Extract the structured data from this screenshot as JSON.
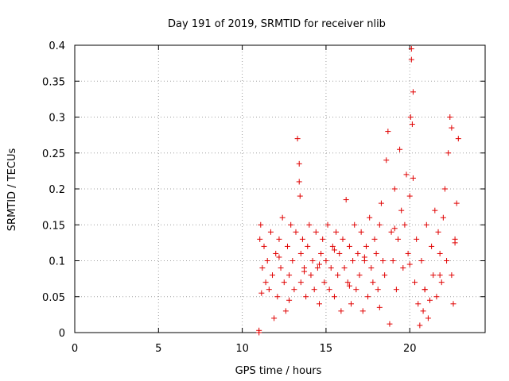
{
  "chart_data": {
    "type": "scatter",
    "title": "Day 191 of 2019, SRMTID for receiver nlib",
    "xlabel": "GPS time / hours",
    "ylabel": "SRMTID / TECUs",
    "xlim": [
      0,
      24.5
    ],
    "ylim": [
      0,
      0.4
    ],
    "grid": true,
    "legend": "none",
    "marker": "+",
    "x_ticks": [
      0,
      5,
      10,
      15,
      20
    ],
    "x_tick_labels": [
      "0",
      "5",
      "10",
      "15",
      "20"
    ],
    "y_ticks": [
      0,
      0.05,
      0.1,
      0.15,
      0.2,
      0.25,
      0.3,
      0.35,
      0.4
    ],
    "y_tick_labels": [
      "0",
      "0.05",
      "0.1",
      "0.15",
      "0.2",
      "0.25",
      "0.3",
      "0.35",
      "0.4"
    ],
    "series": [
      {
        "name": "SRMTID",
        "color": "#e00000",
        "x": [
          11.0,
          11.0,
          11.05,
          11.1,
          11.15,
          11.2,
          11.3,
          11.4,
          11.5,
          11.6,
          11.7,
          11.8,
          11.9,
          12.0,
          12.1,
          12.2,
          12.3,
          12.4,
          12.5,
          12.6,
          12.7,
          12.8,
          12.9,
          13.0,
          13.1,
          13.2,
          13.3,
          13.4,
          13.4,
          13.45,
          13.5,
          13.5,
          13.6,
          13.7,
          13.8,
          13.9,
          14.0,
          14.1,
          14.2,
          14.3,
          14.4,
          14.5,
          14.6,
          14.7,
          14.8,
          14.9,
          15.0,
          15.1,
          15.2,
          15.3,
          15.4,
          15.5,
          15.6,
          15.7,
          15.8,
          15.9,
          16.0,
          16.1,
          16.2,
          16.3,
          16.4,
          16.5,
          16.6,
          16.7,
          16.8,
          16.9,
          17.0,
          17.1,
          17.2,
          17.3,
          17.4,
          17.5,
          17.6,
          17.7,
          17.8,
          17.9,
          18.0,
          18.1,
          18.2,
          18.3,
          18.4,
          18.5,
          18.6,
          18.7,
          18.8,
          18.9,
          19.0,
          19.1,
          19.2,
          19.3,
          19.4,
          19.5,
          19.6,
          19.7,
          19.8,
          19.9,
          20.0,
          20.05,
          20.1,
          20.1,
          20.15,
          20.2,
          20.2,
          20.3,
          20.4,
          20.5,
          20.6,
          20.7,
          20.8,
          20.9,
          21.0,
          21.1,
          21.2,
          21.3,
          21.4,
          21.5,
          21.6,
          21.7,
          21.8,
          21.9,
          22.0,
          22.1,
          22.2,
          22.3,
          22.4,
          22.5,
          22.5,
          22.6,
          22.7,
          22.8,
          22.9,
          12.2,
          12.8,
          13.7,
          14.6,
          15.5,
          16.4,
          17.3,
          18.2,
          19.1,
          20.0,
          20.9,
          21.8,
          22.7
        ],
        "y": [
          0.0,
          0.003,
          0.13,
          0.15,
          0.055,
          0.09,
          0.12,
          0.07,
          0.1,
          0.06,
          0.14,
          0.08,
          0.02,
          0.11,
          0.05,
          0.13,
          0.09,
          0.16,
          0.07,
          0.03,
          0.12,
          0.08,
          0.15,
          0.1,
          0.06,
          0.14,
          0.27,
          0.235,
          0.21,
          0.19,
          0.11,
          0.07,
          0.13,
          0.09,
          0.05,
          0.12,
          0.15,
          0.08,
          0.1,
          0.06,
          0.14,
          0.09,
          0.04,
          0.11,
          0.13,
          0.07,
          0.1,
          0.15,
          0.06,
          0.09,
          0.12,
          0.05,
          0.14,
          0.08,
          0.11,
          0.03,
          0.13,
          0.09,
          0.185,
          0.07,
          0.12,
          0.04,
          0.1,
          0.15,
          0.06,
          0.11,
          0.08,
          0.14,
          0.03,
          0.1,
          0.12,
          0.05,
          0.16,
          0.09,
          0.07,
          0.13,
          0.11,
          0.06,
          0.15,
          0.18,
          0.1,
          0.08,
          0.24,
          0.28,
          0.012,
          0.14,
          0.1,
          0.2,
          0.06,
          0.13,
          0.255,
          0.17,
          0.09,
          0.15,
          0.22,
          0.11,
          0.19,
          0.3,
          0.395,
          0.38,
          0.29,
          0.335,
          0.215,
          0.07,
          0.13,
          0.04,
          0.01,
          0.1,
          0.03,
          0.06,
          0.15,
          0.02,
          0.045,
          0.12,
          0.08,
          0.17,
          0.05,
          0.14,
          0.11,
          0.07,
          0.16,
          0.2,
          0.1,
          0.25,
          0.3,
          0.285,
          0.08,
          0.04,
          0.13,
          0.18,
          0.27,
          0.105,
          0.045,
          0.085,
          0.095,
          0.115,
          0.065,
          0.105,
          0.035,
          0.145,
          0.095,
          0.06,
          0.08,
          0.125
        ]
      }
    ]
  }
}
